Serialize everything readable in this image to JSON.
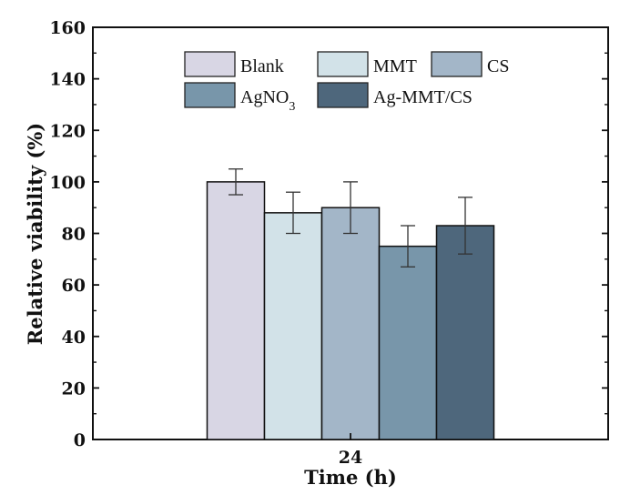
{
  "chart_data": {
    "type": "bar",
    "categories": [
      "24"
    ],
    "series": [
      {
        "name": "Blank",
        "values": [
          100
        ],
        "error": [
          5
        ],
        "color": "#d8d6e4"
      },
      {
        "name": "MMT",
        "values": [
          88
        ],
        "error": [
          8
        ],
        "color": "#d2e2e8"
      },
      {
        "name": "CS",
        "values": [
          90
        ],
        "error": [
          10
        ],
        "color": "#a3b6c8"
      },
      {
        "name": "AgNO3",
        "values": [
          75
        ],
        "error": [
          8
        ],
        "color": "#7896aa"
      },
      {
        "name": "Ag-MMT/CS",
        "values": [
          83
        ],
        "error": [
          11
        ],
        "color": "#4e677c"
      }
    ],
    "xlabel": "Time (h)",
    "ylabel": "Relative viability (%)",
    "ylim": [
      0,
      160
    ],
    "yticks": [
      "0",
      "20",
      "40",
      "60",
      "80",
      "100",
      "120",
      "140",
      "160"
    ],
    "grid": false,
    "legend_position": "top"
  }
}
